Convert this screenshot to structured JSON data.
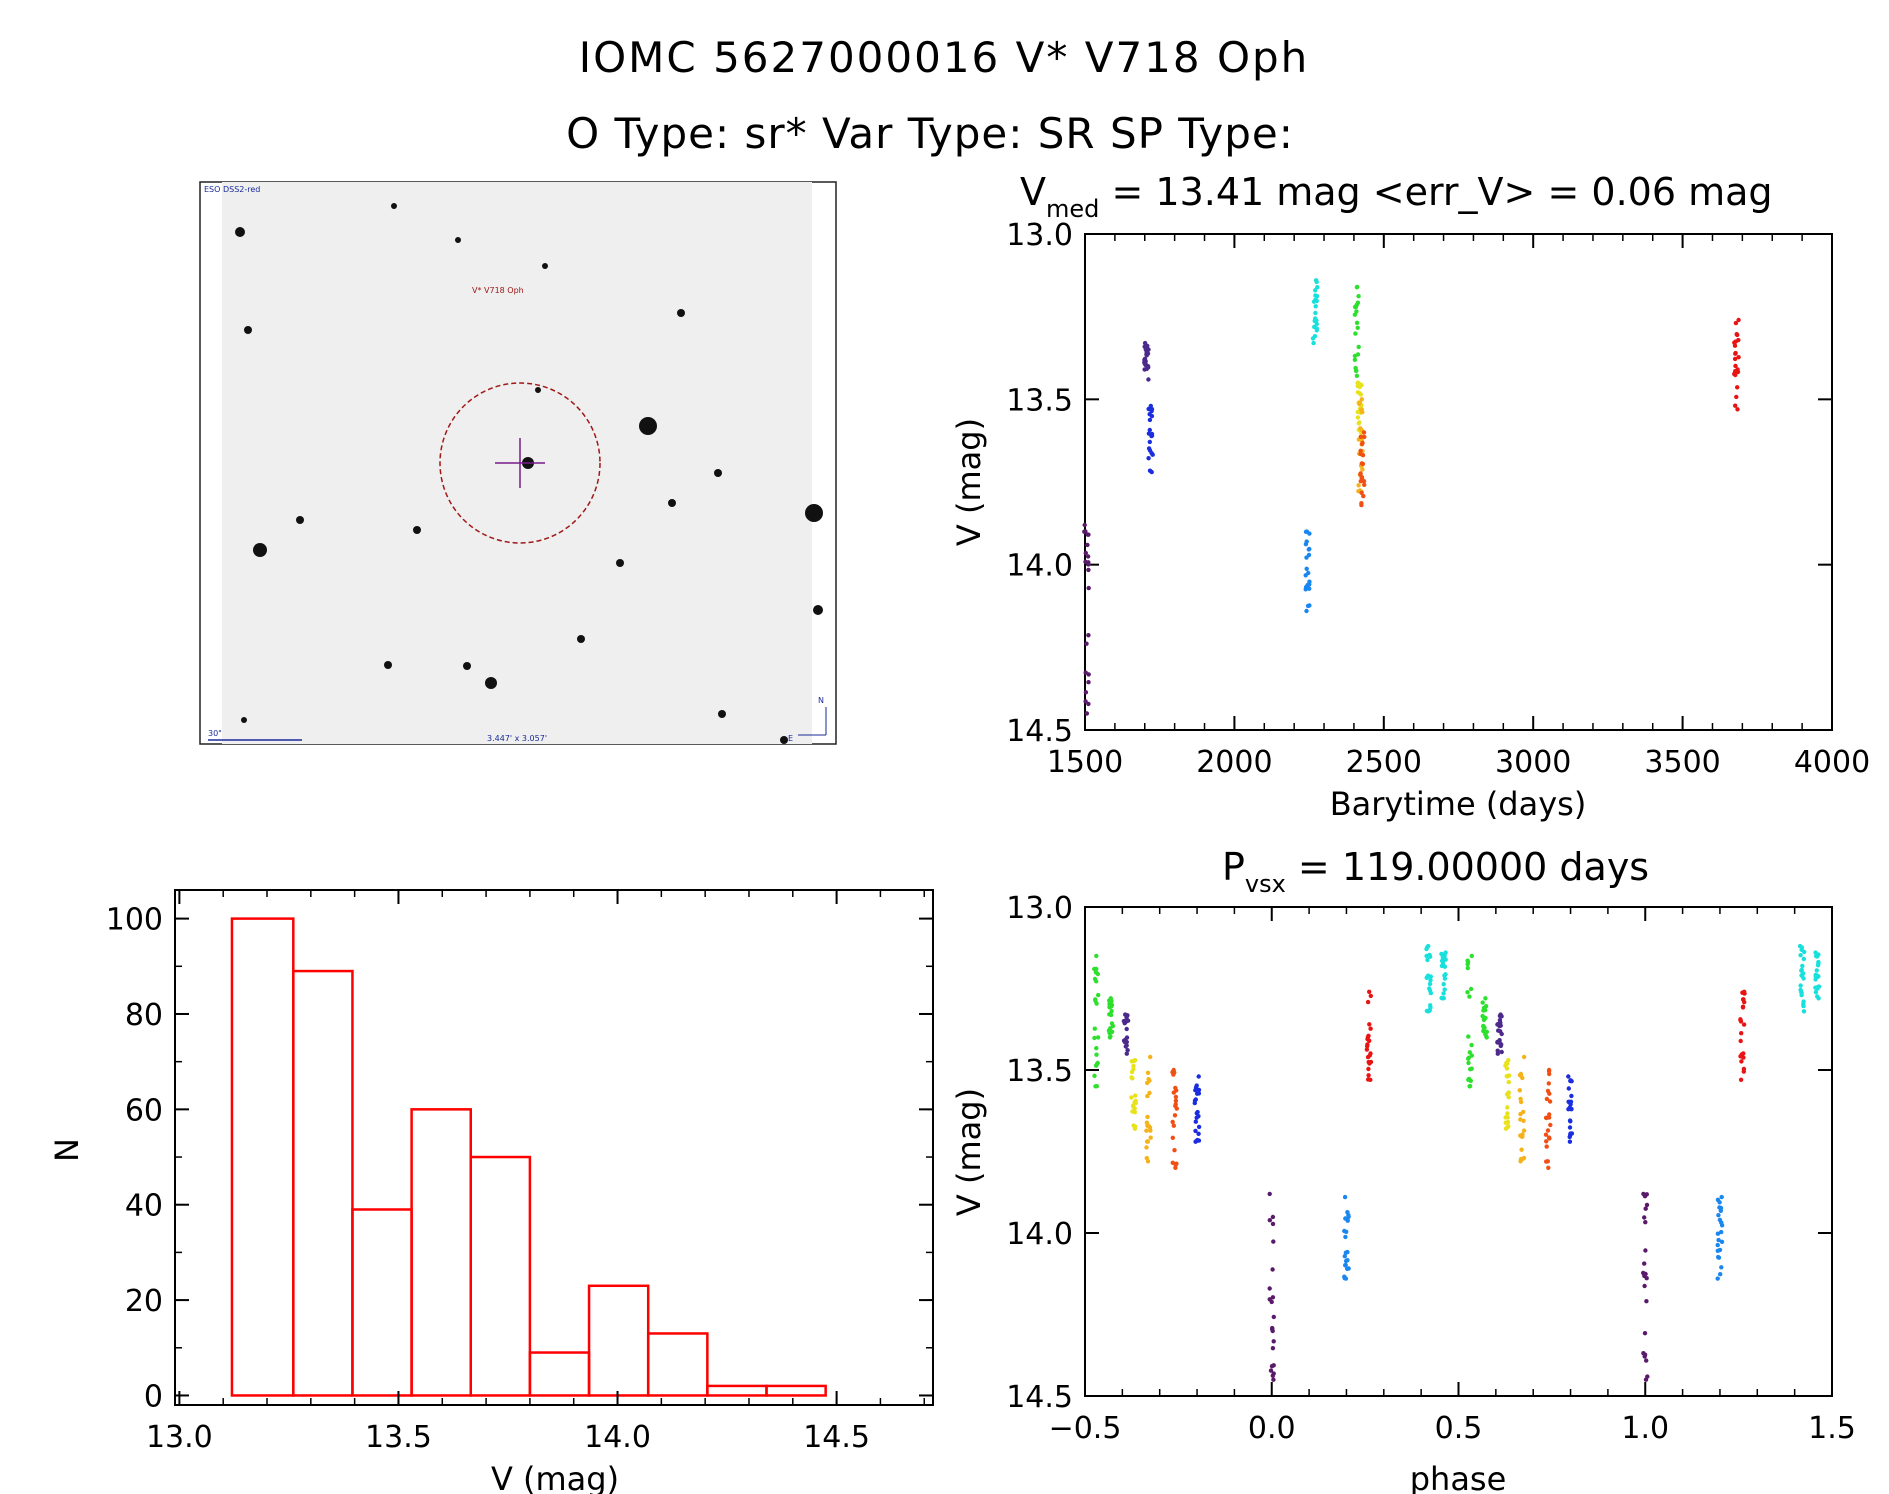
{
  "header": {
    "line1": "IOMC 5627000016    V* V718 Oph",
    "line2": "O Type: sr*  Var Type: SR  SP Type:"
  },
  "sky_image": {
    "survey_label": "ESO DSS2-red",
    "target_label": "V* V718 Oph",
    "scale_label": "30\"",
    "size_label": "3.447' x 3.057'",
    "north_label": "N",
    "east_label": "E"
  },
  "colors": {
    "hist": "#ff0000",
    "c_purple": "#4b2a8c",
    "c_dkpurple": "#5a1a6a",
    "c_blue": "#1a2ee0",
    "c_azure": "#1a86f0",
    "c_cyan": "#18e0dc",
    "c_green": "#2ee02e",
    "c_yellow": "#e8e21a",
    "c_orange": "#f5b21a",
    "c_dkorange": "#f05014",
    "c_red": "#e81414"
  },
  "chart_data": [
    {
      "id": "lightcurve",
      "type": "scatter",
      "title_main": "V",
      "title_sub": "med",
      "title_rest": " = 13.41 mag <err_V> = 0.06 mag",
      "xlabel": "Barytime (days)",
      "ylabel": "V (mag)",
      "xlim": [
        1500,
        4000
      ],
      "ylim": [
        14.5,
        13.0
      ],
      "xticks": [
        "1500",
        "2000",
        "2500",
        "3000",
        "3500",
        "4000"
      ],
      "yticks": [
        "13.0",
        "13.5",
        "14.0",
        "14.5"
      ],
      "series": [
        {
          "color": "c_dkpurple",
          "x": 1505,
          "ymin": 13.88,
          "ymax": 14.45
        },
        {
          "color": "c_purple",
          "x": 1705,
          "ymin": 13.33,
          "ymax": 13.44
        },
        {
          "color": "c_blue",
          "x": 1720,
          "ymin": 13.52,
          "ymax": 13.72
        },
        {
          "color": "c_azure",
          "x": 2245,
          "ymin": 13.9,
          "ymax": 14.14
        },
        {
          "color": "c_cyan",
          "x": 2270,
          "ymin": 13.14,
          "ymax": 13.33
        },
        {
          "color": "c_green",
          "x": 2410,
          "ymin": 13.16,
          "ymax": 13.46
        },
        {
          "color": "c_yellow",
          "x": 2420,
          "ymin": 13.45,
          "ymax": 13.6
        },
        {
          "color": "c_orange",
          "x": 2422,
          "ymin": 13.5,
          "ymax": 13.78
        },
        {
          "color": "c_dkorange",
          "x": 2428,
          "ymin": 13.6,
          "ymax": 13.82
        },
        {
          "color": "c_red",
          "x": 3680,
          "ymin": 13.26,
          "ymax": 13.53
        }
      ]
    },
    {
      "id": "histogram",
      "type": "bar",
      "xlabel": "V (mag)",
      "ylabel": "N",
      "xlim": [
        12.99,
        14.72
      ],
      "ylim": [
        -2,
        106
      ],
      "xticks": [
        "13.0",
        "13.5",
        "14.0",
        "14.5"
      ],
      "yticks": [
        "0",
        "20",
        "40",
        "60",
        "80",
        "100"
      ],
      "bin_edges": [
        13.12,
        13.26,
        13.395,
        13.53,
        13.665,
        13.8,
        13.935,
        14.07,
        14.205,
        14.34,
        14.475
      ],
      "counts": [
        100,
        89,
        39,
        60,
        50,
        9,
        23,
        13,
        2,
        2
      ]
    },
    {
      "id": "phased",
      "type": "scatter",
      "title_main": "P",
      "title_sub": "vsx",
      "title_rest": " = 119.00000 days",
      "xlabel": "phase",
      "ylabel": "V (mag)",
      "xlim": [
        -0.5,
        1.5
      ],
      "ylim": [
        14.5,
        13.0
      ],
      "xticks": [
        "−0.5",
        "0.0",
        "0.5",
        "1.0",
        "1.5"
      ],
      "yticks": [
        "13.0",
        "13.5",
        "14.0",
        "14.5"
      ],
      "series": [
        {
          "color": "c_green",
          "x": -0.47,
          "ymin": 13.15,
          "ymax": 13.55
        },
        {
          "color": "c_green",
          "x": -0.43,
          "ymin": 13.28,
          "ymax": 13.4
        },
        {
          "color": "c_purple",
          "x": -0.39,
          "ymin": 13.33,
          "ymax": 13.45
        },
        {
          "color": "c_yellow",
          "x": -0.37,
          "ymin": 13.47,
          "ymax": 13.68
        },
        {
          "color": "c_orange",
          "x": -0.33,
          "ymin": 13.46,
          "ymax": 13.78
        },
        {
          "color": "c_dkorange",
          "x": -0.26,
          "ymin": 13.5,
          "ymax": 13.8
        },
        {
          "color": "c_blue",
          "x": -0.2,
          "ymin": 13.52,
          "ymax": 13.72
        },
        {
          "color": "c_dkpurple",
          "x": 0.0,
          "ymin": 13.88,
          "ymax": 14.45
        },
        {
          "color": "c_azure",
          "x": 0.2,
          "ymin": 13.89,
          "ymax": 14.14
        },
        {
          "color": "c_red",
          "x": 0.26,
          "ymin": 13.26,
          "ymax": 13.53
        },
        {
          "color": "c_cyan",
          "x": 0.42,
          "ymin": 13.12,
          "ymax": 13.32
        },
        {
          "color": "c_cyan",
          "x": 0.46,
          "ymin": 13.14,
          "ymax": 13.28
        },
        {
          "color": "c_green",
          "x": 0.53,
          "ymin": 13.15,
          "ymax": 13.55
        },
        {
          "color": "c_green",
          "x": 0.57,
          "ymin": 13.28,
          "ymax": 13.4
        },
        {
          "color": "c_purple",
          "x": 0.61,
          "ymin": 13.33,
          "ymax": 13.45
        },
        {
          "color": "c_yellow",
          "x": 0.63,
          "ymin": 13.47,
          "ymax": 13.68
        },
        {
          "color": "c_orange",
          "x": 0.67,
          "ymin": 13.46,
          "ymax": 13.78
        },
        {
          "color": "c_dkorange",
          "x": 0.74,
          "ymin": 13.5,
          "ymax": 13.8
        },
        {
          "color": "c_blue",
          "x": 0.8,
          "ymin": 13.52,
          "ymax": 13.72
        },
        {
          "color": "c_dkpurple",
          "x": 1.0,
          "ymin": 13.88,
          "ymax": 14.45
        },
        {
          "color": "c_azure",
          "x": 1.2,
          "ymin": 13.89,
          "ymax": 14.14
        },
        {
          "color": "c_red",
          "x": 1.26,
          "ymin": 13.26,
          "ymax": 13.53
        },
        {
          "color": "c_cyan",
          "x": 1.42,
          "ymin": 13.12,
          "ymax": 13.32
        },
        {
          "color": "c_cyan",
          "x": 1.46,
          "ymin": 13.14,
          "ymax": 13.28
        }
      ]
    }
  ]
}
